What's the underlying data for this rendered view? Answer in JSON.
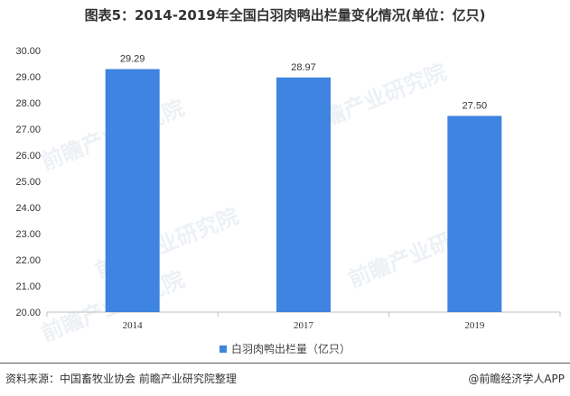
{
  "title": "图表5：2014-2019年全国白羽肉鸭出栏量变化情况(单位：亿只)",
  "watermark_text": "前瞻产业研究院",
  "legend_label": "白羽肉鸭出栏量（亿只）",
  "source": "资料来源：中国畜牧业协会 前瞻产业研究院整理",
  "credit": "@前瞻经济学人APP",
  "colors": {
    "bar": "#3e84e0",
    "axis": "#bfbfbf",
    "text": "#333333"
  },
  "chart_data": {
    "type": "bar",
    "categories": [
      "2014",
      "2017",
      "2019"
    ],
    "series": [
      {
        "name": "白羽肉鸭出栏量（亿只）",
        "values": [
          29.29,
          28.97,
          27.5
        ]
      }
    ],
    "value_labels": [
      "29.29",
      "28.97",
      "27.50"
    ],
    "yticks": [
      "20.00",
      "21.00",
      "22.00",
      "23.00",
      "24.00",
      "25.00",
      "26.00",
      "27.00",
      "28.00",
      "29.00",
      "30.00"
    ],
    "ylim": [
      20,
      30
    ],
    "grid": false,
    "legend": "bottom"
  }
}
